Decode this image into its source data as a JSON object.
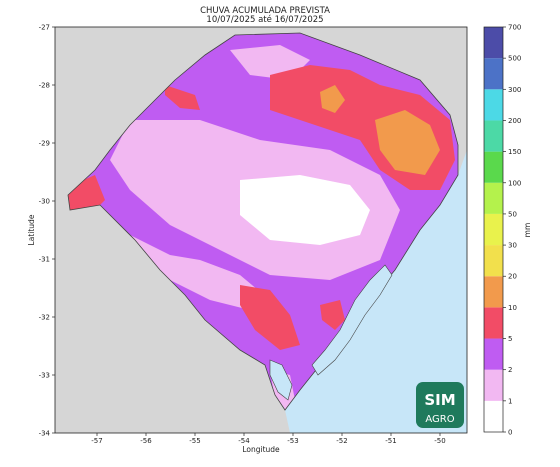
{
  "title": "CHUVA ACUMULADA PREVISTA",
  "subtitle": "10/07/2025 até 16/07/2025",
  "map": {
    "xlabel": "Longitude",
    "ylabel": "Latitude",
    "x_ticks": [
      "-57",
      "-56",
      "-55",
      "-54",
      "-53",
      "-52",
      "-51",
      "-50"
    ],
    "y_ticks": [
      "-27",
      "-28",
      "-29",
      "-30",
      "-31",
      "-32",
      "-33",
      "-34"
    ],
    "colors": {
      "land_outside": "#d6d6d6",
      "ocean": "#c7e6f8",
      "lagoon": "#c7e6f8",
      "border": "#444444"
    }
  },
  "colorbar": {
    "unit": "mm",
    "labels": [
      "0",
      "1",
      "2",
      "5",
      "10",
      "20",
      "30",
      "50",
      "100",
      "150",
      "200",
      "300",
      "500",
      "700"
    ],
    "colors": [
      "#ffffff",
      "#f2b8f2",
      "#bf5cf2",
      "#f24c66",
      "#f29a4c",
      "#f2e04c",
      "#e9f24c",
      "#b4f24c",
      "#5ad94c",
      "#4cd9a6",
      "#4cd9e6",
      "#4c72c7",
      "#4c4ca8"
    ]
  },
  "logo": {
    "line1": "SIM",
    "line2": "AGRO",
    "color": "#1f7a5c"
  }
}
